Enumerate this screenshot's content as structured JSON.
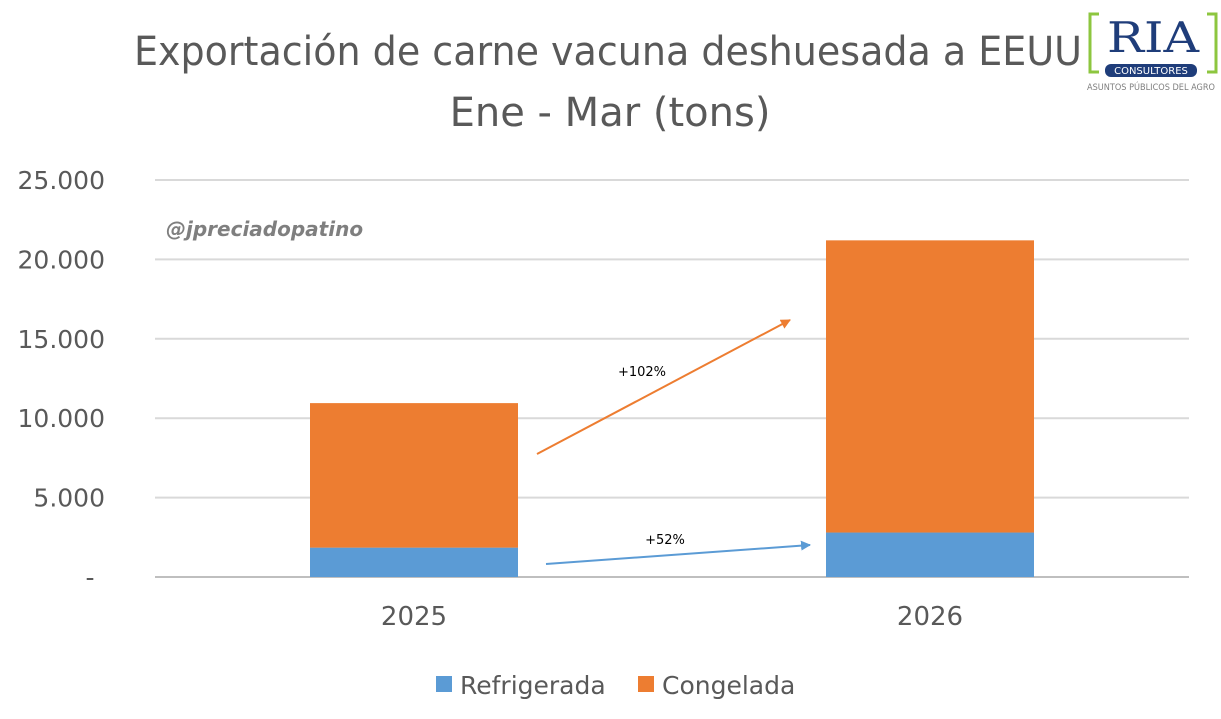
{
  "title": {
    "line1": "Exportación de carne vacuna deshuesada a EEUU",
    "line2": "Ene - Mar (tons)"
  },
  "watermark": "@jpreciadopatino",
  "logo": {
    "main": "RIA",
    "sub": "CONSULTORES",
    "tagline": "ASUNTOS PÚBLICOS DEL AGRO"
  },
  "annotations": {
    "congelada_growth": "+102%",
    "refrigerada_growth": "+52%"
  },
  "colors": {
    "refrigerada": "#5b9bd5",
    "congelada": "#ed7d31",
    "grid": "#d9d9d9",
    "text": "#595959"
  },
  "chart_data": {
    "type": "bar",
    "stacked": true,
    "categories": [
      "2025",
      "2026"
    ],
    "series": [
      {
        "name": "Refrigerada",
        "values": [
          1850,
          2800
        ]
      },
      {
        "name": "Congelada",
        "values": [
          9100,
          18400
        ]
      }
    ],
    "ylim": [
      0,
      25000
    ],
    "yticks": [
      {
        "value": 0,
        "label": "-"
      },
      {
        "value": 5000,
        "label": "5.000"
      },
      {
        "value": 10000,
        "label": "10.000"
      },
      {
        "value": 15000,
        "label": "15.000"
      },
      {
        "value": 20000,
        "label": "20.000"
      },
      {
        "value": 25000,
        "label": "25.000"
      }
    ],
    "grid": true,
    "legend": "bottom"
  }
}
